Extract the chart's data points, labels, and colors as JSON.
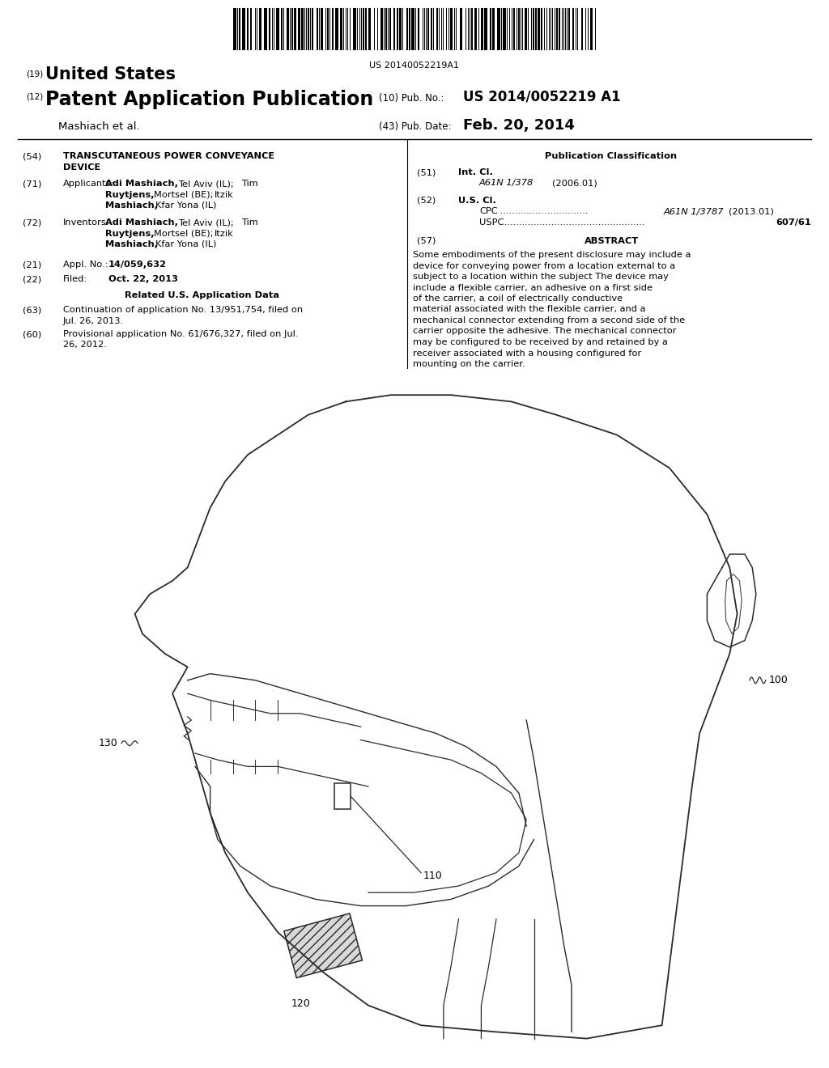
{
  "background_color": "#ffffff",
  "barcode_text": "US 20140052219A1",
  "title_19_label": "(19)",
  "title_19_text": "United States",
  "title_12_label": "(12)",
  "title_12_text": "Patent Application Publication",
  "pub_no_label": "(10) Pub. No.:",
  "pub_no_value": "US 2014/0052219 A1",
  "authors": "Mashiach et al.",
  "pub_date_label": "(43) Pub. Date:",
  "pub_date_value": "Feb. 20, 2014",
  "field54_label": "(54)",
  "field71_label": "(71)",
  "field72_label": "(72)",
  "field21_label": "(21)",
  "field22_label": "(22)",
  "field63_label": "(63)",
  "field60_label": "(60)",
  "field51_label": "(51)",
  "field52_label": "(52)",
  "field57_label": "(57)",
  "pub_class_title": "Publication Classification",
  "field51_int_cl": "Int. Cl.",
  "field51_class": "A61N 1/378",
  "field51_year": "(2006.01)",
  "field52_us_cl": "U.S. Cl.",
  "field52_cpc_dots": " ............................",
  "field52_cpc_value": " A61N 1/3787",
  "field52_cpc_year": "(2013.01)",
  "field52_uspc_dots": " .......................................................",
  "field52_uspc_value": "607/61",
  "abstract_title": "ABSTRACT",
  "abstract_text": "Some embodiments of the present disclosure may include a device for conveying power from a location external to a subject to a location within the subject The device may include a flexible carrier, an adhesive on a first side of the carrier, a coil of electrically conductive material associated with the flexible carrier, and a mechanical connector extending from a second side of the carrier opposite the adhesive. The mechanical connector may be configured to be received by and retained by a receiver associated with a housing configured for mounting on the carrier.",
  "fig_label_100": "100",
  "fig_label_110": "110",
  "fig_label_120": "120",
  "fig_label_130": "130",
  "line_color": "#000000",
  "text_color": "#000000"
}
